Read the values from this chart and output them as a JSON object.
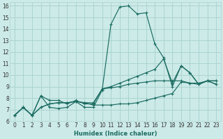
{
  "xlabel": "Humidex (Indice chaleur)",
  "background_color": "#cceae8",
  "grid_color": "#aad4d0",
  "line_color": "#1a6b60",
  "xlim": [
    -0.5,
    23.5
  ],
  "ylim": [
    6,
    16.3
  ],
  "xticks": [
    0,
    1,
    2,
    3,
    4,
    5,
    6,
    7,
    8,
    9,
    10,
    11,
    12,
    13,
    14,
    15,
    16,
    17,
    18,
    19,
    20,
    21,
    22,
    23
  ],
  "yticks": [
    6,
    7,
    8,
    9,
    10,
    11,
    12,
    13,
    14,
    15,
    16
  ],
  "series1_x": [
    0,
    1,
    2,
    3,
    4,
    5,
    6,
    7,
    8,
    9,
    10,
    11,
    12,
    13,
    14,
    15,
    16,
    17,
    18,
    19,
    20,
    21,
    22,
    23
  ],
  "series1_y": [
    6.5,
    7.2,
    6.5,
    8.2,
    7.2,
    7.1,
    7.2,
    7.7,
    7.2,
    7.2,
    8.7,
    14.4,
    15.9,
    16.0,
    15.3,
    15.4,
    12.7,
    11.5,
    9.0,
    10.8,
    10.2,
    9.2,
    9.5,
    9.2
  ],
  "series2_x": [
    0,
    1,
    2,
    3,
    4,
    5,
    6,
    7,
    8,
    9,
    10,
    11,
    12,
    13,
    14,
    15,
    16,
    17,
    18,
    19,
    20,
    21,
    22,
    23
  ],
  "series2_y": [
    6.5,
    7.2,
    6.5,
    7.2,
    7.5,
    7.6,
    7.6,
    7.7,
    7.6,
    7.6,
    8.8,
    8.9,
    9.0,
    9.2,
    9.3,
    9.4,
    9.5,
    9.5,
    9.5,
    9.5,
    9.3,
    9.2,
    9.5,
    9.5
  ],
  "series3_x": [
    0,
    1,
    2,
    3,
    4,
    5,
    6,
    7,
    8,
    9,
    10,
    11,
    12,
    13,
    14,
    15,
    16,
    17,
    18,
    19,
    20,
    21,
    22,
    23
  ],
  "series3_y": [
    6.5,
    7.2,
    6.5,
    8.2,
    7.8,
    7.8,
    7.5,
    7.8,
    7.5,
    7.5,
    8.8,
    9.0,
    9.3,
    9.6,
    9.9,
    10.2,
    10.5,
    11.4,
    9.3,
    10.8,
    10.2,
    9.2,
    9.5,
    9.2
  ],
  "series4_x": [
    0,
    1,
    2,
    3,
    4,
    5,
    6,
    7,
    8,
    9,
    10,
    11,
    12,
    13,
    14,
    15,
    16,
    17,
    18,
    19,
    20,
    21,
    22,
    23
  ],
  "series4_y": [
    6.5,
    7.2,
    6.5,
    7.2,
    7.5,
    7.6,
    7.6,
    7.7,
    7.6,
    7.4,
    7.4,
    7.4,
    7.5,
    7.5,
    7.6,
    7.8,
    8.0,
    8.2,
    8.4,
    9.4,
    9.3,
    9.3,
    9.5,
    9.5
  ]
}
